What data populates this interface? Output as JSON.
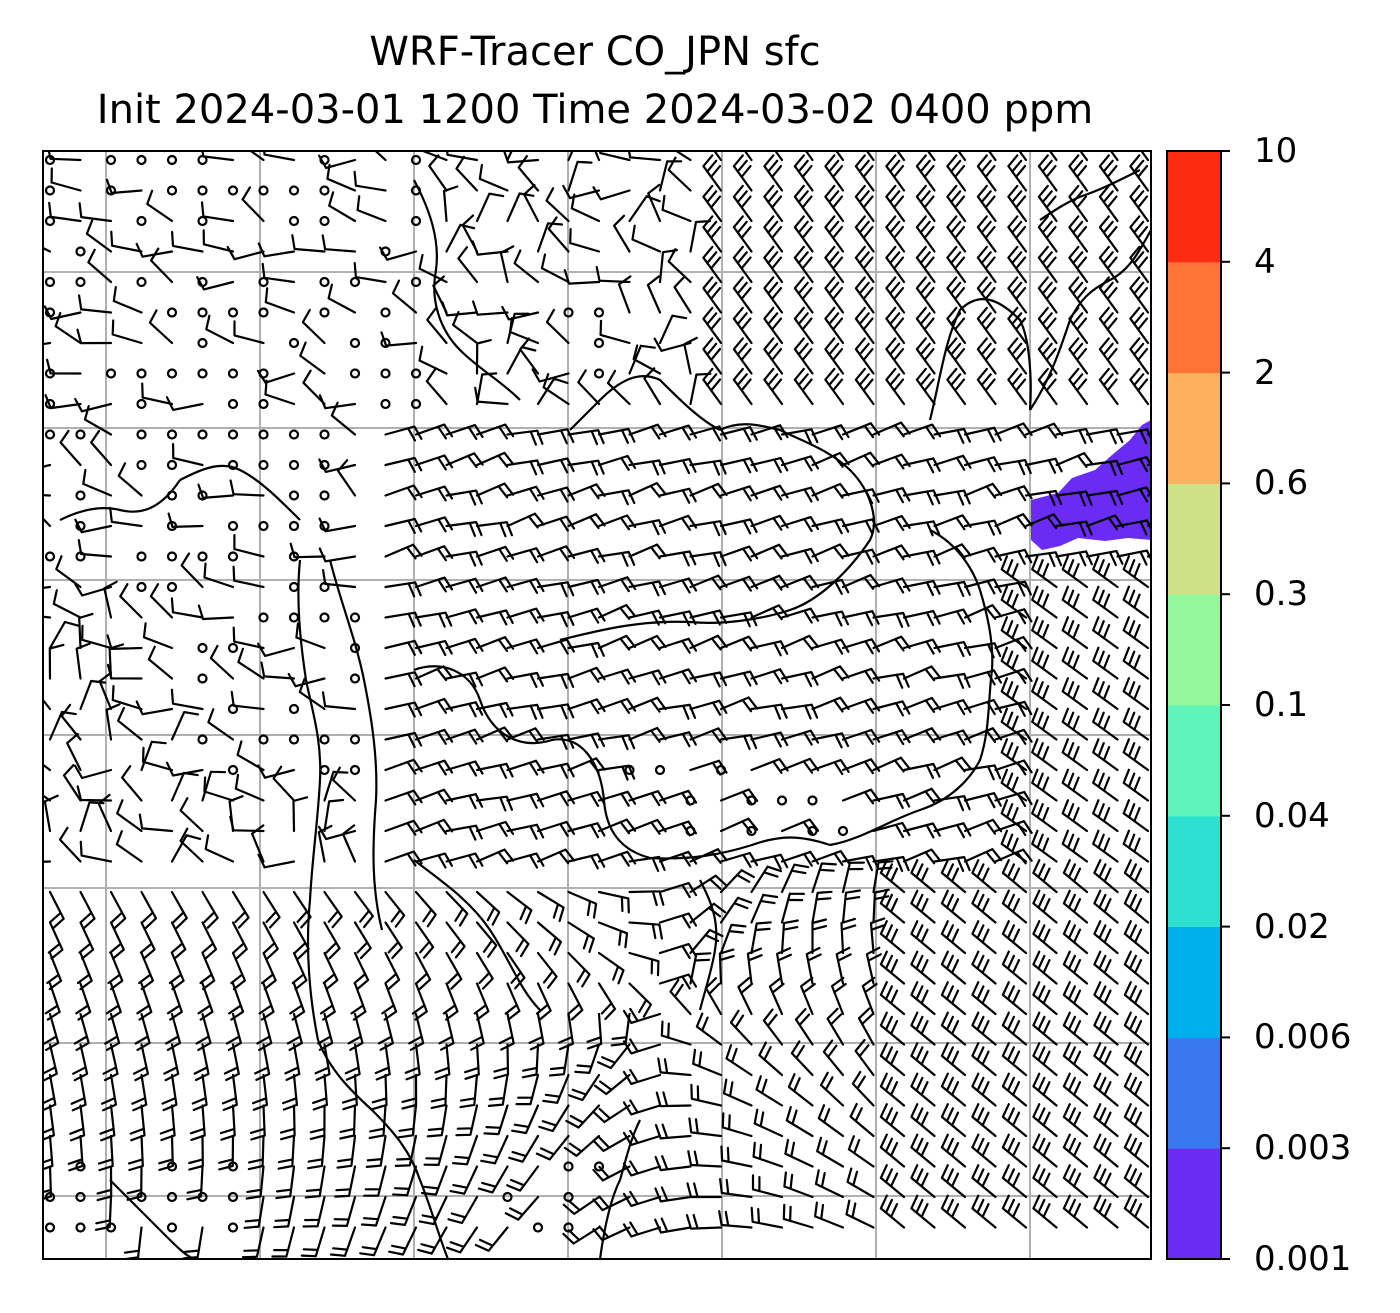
{
  "title": {
    "line1": "WRF-Tracer CO_JPN sfc",
    "line2": "Init 2024-03-01 1200 Time 2024-03-02 0400 ppm"
  },
  "colorbar": {
    "levels": [
      "0.001",
      "0.003",
      "0.006",
      "0.02",
      "0.04",
      "0.1",
      "0.3",
      "0.6",
      "2",
      "4",
      "10"
    ],
    "colors": [
      "#6a2cf5",
      "#3a78f0",
      "#00b0ec",
      "#2ee0d0",
      "#5ef3b8",
      "#92f89a",
      "#d0e084",
      "#fcb060",
      "#ff7436",
      "#ff2a12"
    ]
  },
  "map": {
    "layers": [
      "wind-barbs",
      "coastlines",
      "lat-lon-gridlines",
      "co-tracer-concentration"
    ],
    "tracer_region": "Japan (east edge of domain)",
    "tracer_level": "0.001 - 0.003 ppm"
  }
}
